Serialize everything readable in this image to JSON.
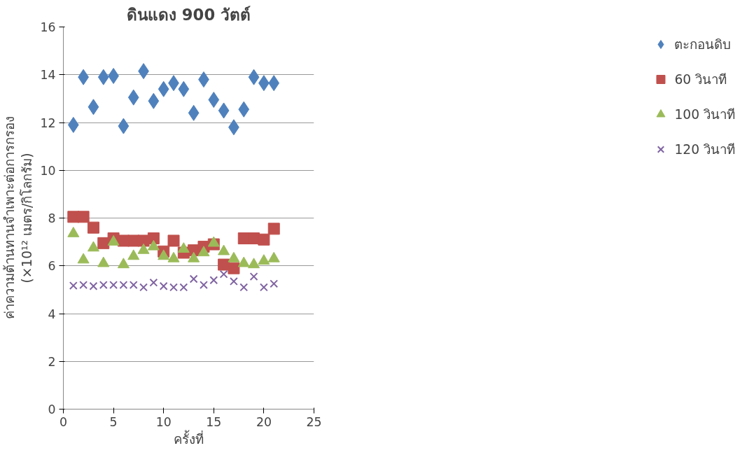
{
  "chart_data": {
    "type": "scatter",
    "title": "ดินแดง 900 วัตต์",
    "xlabel": "ครั้งที่",
    "ylabel": "ค่าความต้านทานจำเพาะต่อการกรอง\n(×10¹² เมตร/กิโลกรัม)",
    "x": [
      1,
      2,
      3,
      4,
      5,
      6,
      7,
      8,
      9,
      10,
      11,
      12,
      13,
      14,
      15,
      16,
      17,
      18,
      19,
      20,
      21
    ],
    "xlim": [
      0,
      25
    ],
    "xticks": [
      0,
      5,
      10,
      15,
      20,
      25
    ],
    "ylim": [
      0,
      16
    ],
    "yticks": [
      0,
      2,
      4,
      6,
      8,
      10,
      12,
      14,
      16
    ],
    "grid": "y",
    "legend": "right",
    "series": [
      {
        "name": "ตะกอนดิบ",
        "color": "#4f81bd",
        "marker": "diamond",
        "values": [
          11.9,
          13.9,
          12.65,
          13.9,
          13.95,
          11.85,
          13.05,
          14.15,
          12.9,
          13.4,
          13.65,
          13.4,
          12.4,
          13.8,
          12.95,
          12.5,
          11.8,
          12.55,
          13.9,
          13.65,
          13.65
        ]
      },
      {
        "name": "60 วินาที",
        "color": "#c0504d",
        "marker": "square",
        "values": [
          8.05,
          8.05,
          7.6,
          6.95,
          7.15,
          7.05,
          7.05,
          7.05,
          7.15,
          6.6,
          7.05,
          6.55,
          6.65,
          6.8,
          6.9,
          6.05,
          5.9,
          7.15,
          7.15,
          7.1,
          7.55
        ]
      },
      {
        "name": "100 วินาที",
        "color": "#9bbb59",
        "marker": "triangle",
        "values": [
          7.35,
          6.25,
          6.75,
          6.1,
          7.0,
          6.05,
          6.4,
          6.65,
          6.8,
          6.4,
          6.3,
          6.7,
          6.3,
          6.55,
          6.95,
          6.6,
          6.3,
          6.1,
          6.05,
          6.2,
          6.3
        ]
      },
      {
        "name": "120 วินาที",
        "color": "#8064a2",
        "marker": "cross",
        "values": [
          5.17,
          5.2,
          5.15,
          5.2,
          5.2,
          5.2,
          5.2,
          5.1,
          5.3,
          5.15,
          5.1,
          5.1,
          5.45,
          5.2,
          5.4,
          5.65,
          5.35,
          5.1,
          5.55,
          5.1,
          5.25
        ]
      }
    ]
  }
}
